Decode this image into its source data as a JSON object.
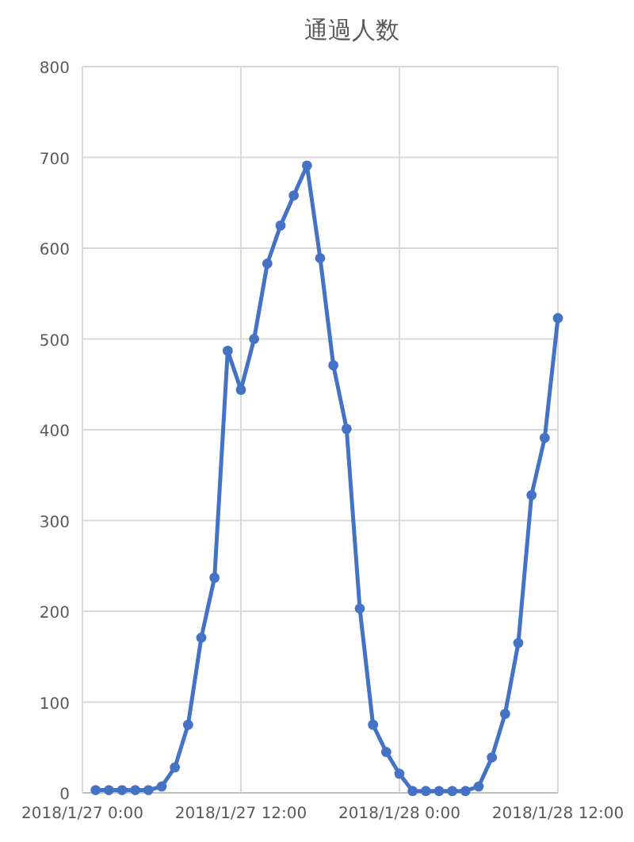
{
  "chart_data": {
    "type": "line",
    "title": "通過人数",
    "x": [
      "2018-01-27T01:00",
      "2018-01-27T02:00",
      "2018-01-27T03:00",
      "2018-01-27T04:00",
      "2018-01-27T05:00",
      "2018-01-27T06:00",
      "2018-01-27T07:00",
      "2018-01-27T08:00",
      "2018-01-27T09:00",
      "2018-01-27T10:00",
      "2018-01-27T11:00",
      "2018-01-27T12:00",
      "2018-01-27T13:00",
      "2018-01-27T14:00",
      "2018-01-27T15:00",
      "2018-01-27T16:00",
      "2018-01-27T17:00",
      "2018-01-27T18:00",
      "2018-01-27T19:00",
      "2018-01-27T20:00",
      "2018-01-27T21:00",
      "2018-01-27T22:00",
      "2018-01-27T23:00",
      "2018-01-28T00:00",
      "2018-01-28T01:00",
      "2018-01-28T02:00",
      "2018-01-28T03:00",
      "2018-01-28T04:00",
      "2018-01-28T05:00",
      "2018-01-28T06:00",
      "2018-01-28T07:00",
      "2018-01-28T08:00",
      "2018-01-28T09:00",
      "2018-01-28T10:00",
      "2018-01-28T11:00",
      "2018-01-28T12:00"
    ],
    "series": [
      {
        "color": "#4472c4",
        "values": [
          3,
          3,
          3,
          3,
          3,
          7,
          28,
          75,
          171,
          237,
          487,
          444,
          500,
          583,
          625,
          658,
          691,
          589,
          471,
          401,
          203,
          75,
          45,
          21,
          2,
          2,
          2,
          2,
          2,
          7,
          39,
          87,
          165,
          328,
          391,
          523
        ]
      }
    ],
    "xlim": [
      "2018-01-27T00:00",
      "2018-01-28T12:00"
    ],
    "xticks": [
      {
        "value": "2018-01-27T00:00",
        "label": "2018/1/27 0:00"
      },
      {
        "value": "2018-01-27T12:00",
        "label": "2018/1/27 12:00"
      },
      {
        "value": "2018-01-28T00:00",
        "label": "2018/1/28 0:00"
      },
      {
        "value": "2018-01-28T12:00",
        "label": "2018/1/28 12:00"
      }
    ],
    "ylim": [
      0,
      800
    ],
    "yticks": [
      0,
      100,
      200,
      300,
      400,
      500,
      600,
      700,
      800
    ],
    "grid": true,
    "marker": "circle",
    "line_style": "solid"
  }
}
